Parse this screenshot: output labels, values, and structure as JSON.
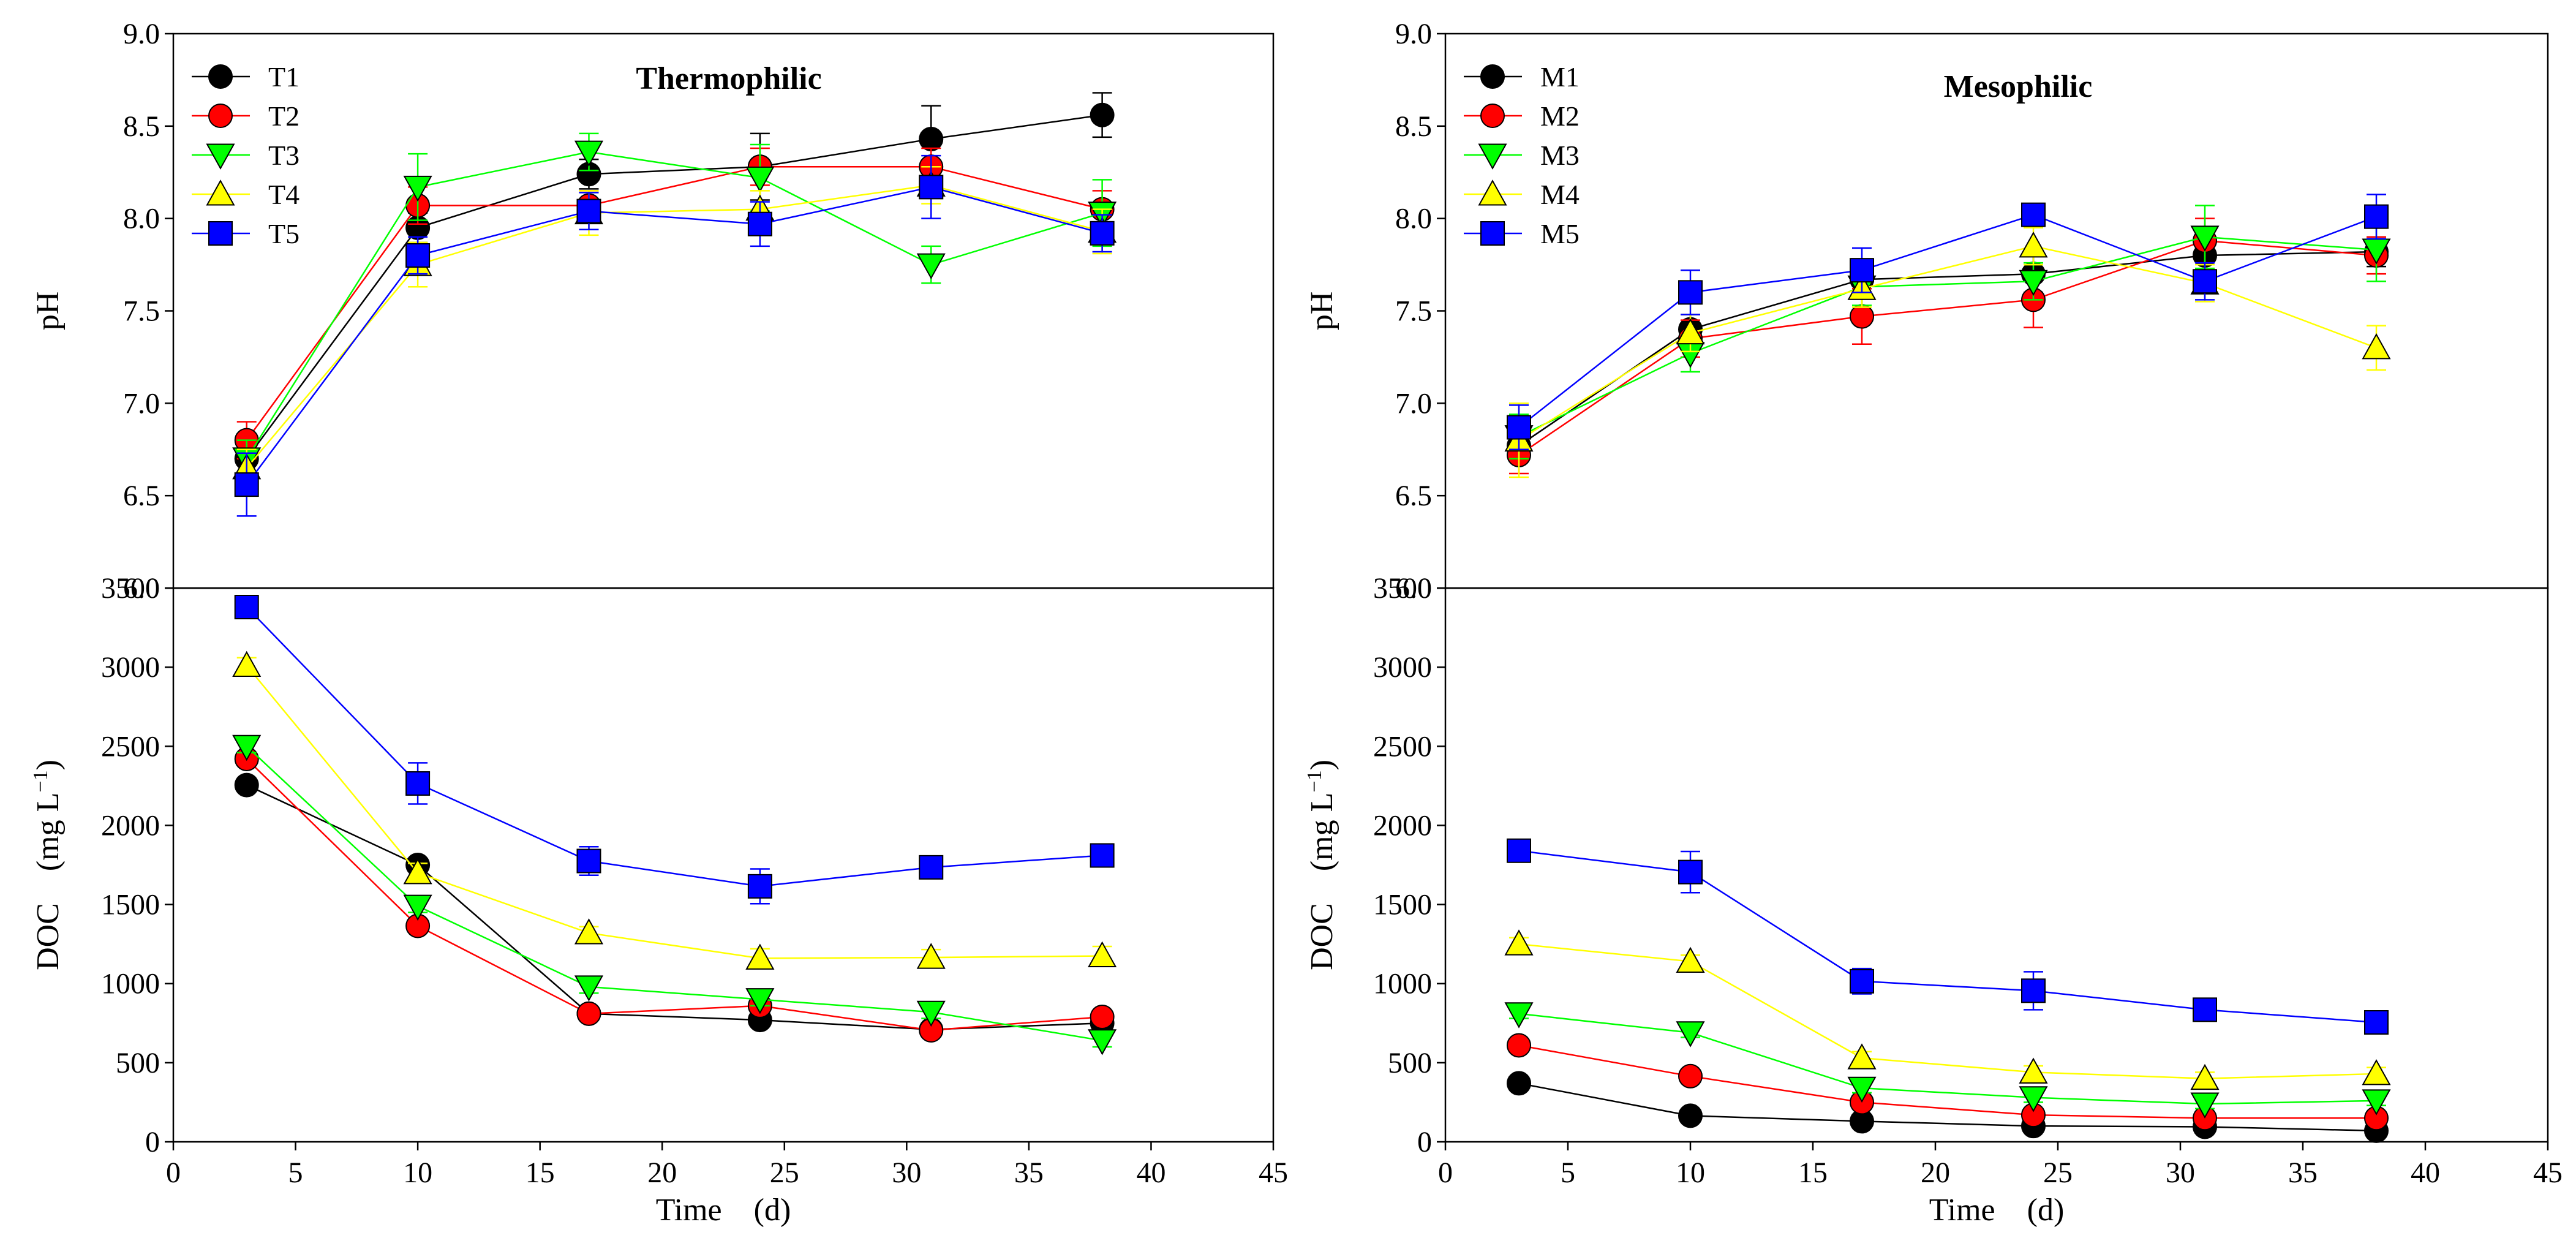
{
  "chart_data": [
    {
      "type": "line",
      "id": "thermo-ph",
      "title": "Thermophilic",
      "ylabel": "pH",
      "xlabel": "",
      "xlim": [
        0,
        45
      ],
      "ylim": [
        6.0,
        9.0
      ],
      "yticks": [
        "6.0",
        "6.5",
        "7.0",
        "7.5",
        "8.0",
        "8.5",
        "9.0"
      ],
      "x": [
        3,
        10,
        17,
        24,
        31,
        38
      ],
      "series": [
        {
          "name": "T1",
          "color": "#000000",
          "marker": "circle",
          "values": [
            6.7,
            7.95,
            8.24,
            8.28,
            8.43,
            8.56
          ],
          "errors": [
            0.08,
            0.08,
            0.08,
            0.18,
            0.18,
            0.12
          ]
        },
        {
          "name": "T2",
          "color": "#ff0000",
          "marker": "circle",
          "values": [
            6.8,
            8.07,
            8.07,
            8.28,
            8.28,
            8.05
          ],
          "errors": [
            0.1,
            0.1,
            0.08,
            0.1,
            0.1,
            0.1
          ]
        },
        {
          "name": "T3",
          "color": "#00ff00",
          "marker": "triangle-down",
          "values": [
            6.7,
            8.17,
            8.36,
            8.22,
            7.75,
            8.03
          ],
          "errors": [
            0.1,
            0.18,
            0.1,
            0.18,
            0.1,
            0.18
          ]
        },
        {
          "name": "T4",
          "color": "#ffff00",
          "marker": "triangle-up",
          "values": [
            6.65,
            7.75,
            8.03,
            8.05,
            8.18,
            7.93
          ],
          "errors": [
            0.1,
            0.12,
            0.12,
            0.1,
            0.1,
            0.12
          ]
        },
        {
          "name": "T5",
          "color": "#0000ff",
          "marker": "square",
          "values": [
            6.56,
            7.8,
            8.04,
            7.97,
            8.17,
            7.92
          ],
          "errors": [
            0.17,
            0.1,
            0.1,
            0.12,
            0.17,
            0.1
          ]
        }
      ]
    },
    {
      "type": "line",
      "id": "thermo-doc",
      "title": "",
      "ylabel": "DOC (mg L⁻¹)",
      "ylabel_main": "DOC　(mg L",
      "ylabel_sup": "−1",
      "ylabel_end": ")",
      "xlabel": "Time　(d)",
      "xlim": [
        0,
        45
      ],
      "ylim": [
        0,
        3500
      ],
      "yticks": [
        "0",
        "500",
        "1000",
        "1500",
        "2000",
        "2500",
        "3000",
        "3500"
      ],
      "xticks": [
        "0",
        "5",
        "10",
        "15",
        "20",
        "25",
        "30",
        "35",
        "40",
        "45"
      ],
      "x": [
        3,
        10,
        17,
        24,
        31,
        38
      ],
      "series": [
        {
          "name": "T1",
          "color": "#000000",
          "marker": "circle",
          "values": [
            2255,
            1750,
            810,
            770,
            710,
            750
          ],
          "errors": [
            30,
            30,
            30,
            40,
            30,
            30
          ]
        },
        {
          "name": "T2",
          "color": "#ff0000",
          "marker": "circle",
          "values": [
            2420,
            1365,
            810,
            860,
            705,
            790
          ],
          "errors": [
            30,
            40,
            30,
            40,
            30,
            30
          ]
        },
        {
          "name": "T3",
          "color": "#00ff00",
          "marker": "triangle-down",
          "values": [
            2500,
            1490,
            980,
            900,
            820,
            640
          ],
          "errors": [
            40,
            40,
            40,
            40,
            40,
            40
          ]
        },
        {
          "name": "T4",
          "color": "#ffff00",
          "marker": "triangle-up",
          "values": [
            3010,
            1700,
            1320,
            1160,
            1165,
            1175
          ],
          "errors": [
            50,
            60,
            40,
            60,
            50,
            60
          ]
        },
        {
          "name": "T5",
          "color": "#0000ff",
          "marker": "square",
          "values": [
            3380,
            2265,
            1775,
            1615,
            1735,
            1810
          ],
          "errors": [
            40,
            130,
            90,
            110,
            50,
            60
          ]
        }
      ]
    },
    {
      "type": "line",
      "id": "meso-ph",
      "title": "Mesophilic",
      "ylabel": "pH",
      "xlabel": "",
      "xlim": [
        0,
        45
      ],
      "ylim": [
        6.0,
        9.0
      ],
      "yticks": [
        "6.0",
        "6.5",
        "7.0",
        "7.5",
        "8.0",
        "8.5",
        "9.0"
      ],
      "x": [
        3,
        10,
        17,
        24,
        31,
        38
      ],
      "series": [
        {
          "name": "M1",
          "color": "#000000",
          "marker": "circle",
          "values": [
            6.77,
            7.4,
            7.67,
            7.7,
            7.8,
            7.82
          ],
          "errors": [
            0.08,
            0.08,
            0.08,
            0.1,
            0.08,
            0.08
          ]
        },
        {
          "name": "M2",
          "color": "#ff0000",
          "marker": "circle",
          "values": [
            6.72,
            7.35,
            7.47,
            7.56,
            7.88,
            7.8
          ],
          "errors": [
            0.1,
            0.1,
            0.15,
            0.15,
            0.12,
            0.1
          ]
        },
        {
          "name": "M3",
          "color": "#00ff00",
          "marker": "triangle-down",
          "values": [
            6.82,
            7.27,
            7.63,
            7.66,
            7.9,
            7.83
          ],
          "errors": [
            0.12,
            0.1,
            0.1,
            0.1,
            0.17,
            0.17
          ]
        },
        {
          "name": "M4",
          "color": "#ffff00",
          "marker": "triangle-up",
          "values": [
            6.8,
            7.38,
            7.62,
            7.85,
            7.65,
            7.3
          ],
          "errors": [
            0.2,
            0.1,
            0.1,
            0.1,
            0.1,
            0.12
          ]
        },
        {
          "name": "M5",
          "color": "#0000ff",
          "marker": "square",
          "values": [
            6.87,
            7.6,
            7.72,
            8.02,
            7.66,
            8.01
          ],
          "errors": [
            0.12,
            0.12,
            0.12,
            0.05,
            0.1,
            0.12
          ]
        }
      ]
    },
    {
      "type": "line",
      "id": "meso-doc",
      "title": "",
      "ylabel": "DOC (mg L⁻¹)",
      "ylabel_main": "DOC　(mg L",
      "ylabel_sup": "−1",
      "ylabel_end": ")",
      "xlabel": "Time　(d)",
      "xlim": [
        0,
        45
      ],
      "ylim": [
        0,
        3500
      ],
      "yticks": [
        "0",
        "500",
        "1000",
        "1500",
        "2000",
        "2500",
        "3000",
        "3500"
      ],
      "xticks": [
        "0",
        "5",
        "10",
        "15",
        "20",
        "25",
        "30",
        "35",
        "40",
        "45"
      ],
      "x": [
        3,
        10,
        17,
        24,
        31,
        38
      ],
      "series": [
        {
          "name": "M1",
          "color": "#000000",
          "marker": "circle",
          "values": [
            370,
            165,
            130,
            100,
            95,
            70
          ],
          "errors": [
            30,
            20,
            20,
            20,
            20,
            20
          ]
        },
        {
          "name": "M2",
          "color": "#ff0000",
          "marker": "circle",
          "values": [
            610,
            415,
            250,
            170,
            150,
            150
          ],
          "errors": [
            30,
            30,
            30,
            30,
            20,
            20
          ]
        },
        {
          "name": "M3",
          "color": "#00ff00",
          "marker": "triangle-down",
          "values": [
            810,
            690,
            340,
            280,
            240,
            260
          ],
          "errors": [
            30,
            30,
            30,
            30,
            30,
            30
          ]
        },
        {
          "name": "M4",
          "color": "#ffff00",
          "marker": "triangle-up",
          "values": [
            1250,
            1140,
            530,
            440,
            400,
            430
          ],
          "errors": [
            40,
            40,
            40,
            40,
            40,
            40
          ]
        },
        {
          "name": "M5",
          "color": "#0000ff",
          "marker": "square",
          "values": [
            1840,
            1705,
            1015,
            955,
            835,
            755
          ],
          "errors": [
            40,
            130,
            80,
            120,
            50,
            60
          ]
        }
      ]
    }
  ]
}
